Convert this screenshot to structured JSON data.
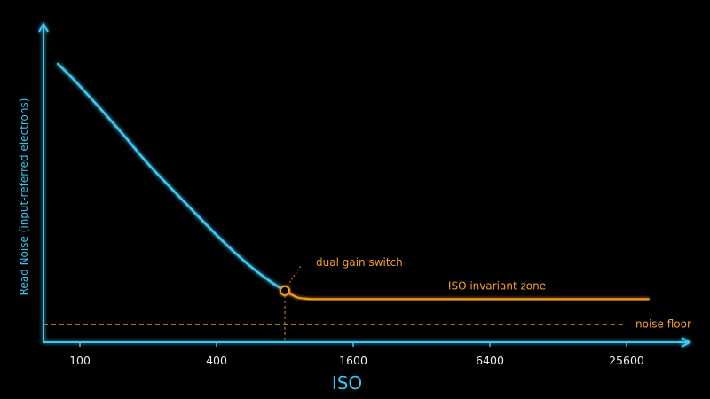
{
  "chart_data": {
    "type": "line",
    "xlabel": "ISO",
    "ylabel": "Read Noise (input-referred electrons)",
    "x_scale": "log2",
    "x_ticks": [
      100,
      400,
      1600,
      6400,
      25600
    ],
    "x_tick_labels": [
      "100",
      "400",
      "1600",
      "6400",
      "25600"
    ],
    "xlim": [
      65,
      60000
    ],
    "ylim": [
      0,
      10
    ],
    "grid": false,
    "series": [
      {
        "segment": "low-gain",
        "color": "#3cc8f2",
        "x": [
          80,
          100,
          150,
          200,
          300,
          400,
          500,
          600,
          700,
          800
        ],
        "y": [
          10.0,
          9.2,
          7.6,
          6.4,
          4.9,
          3.85,
          3.1,
          2.55,
          2.15,
          1.85
        ]
      },
      {
        "segment": "high-gain",
        "color": "#f29a1f",
        "x": [
          800,
          900,
          1000,
          1100,
          1600,
          3200,
          6400,
          12800,
          25600,
          32000
        ],
        "y": [
          1.85,
          1.62,
          1.56,
          1.55,
          1.55,
          1.55,
          1.55,
          1.55,
          1.55,
          1.55
        ]
      }
    ],
    "reference_lines": [
      {
        "type": "horizontal",
        "y": 0.65,
        "label": "noise floor",
        "style": "dashed"
      },
      {
        "type": "vertical",
        "x": 800,
        "style": "dashed"
      }
    ],
    "annotations": [
      {
        "text": "dual gain switch",
        "x": 800,
        "y": 1.85
      },
      {
        "text": "ISO invariant zone",
        "x": 6400,
        "y": 1.55
      }
    ],
    "colors": {
      "axis": "#3cc8f2",
      "low_gain": "#3cc8f2",
      "high_gain": "#f29a1f",
      "annotation": "#f2a126",
      "tick_text": "#e6eef2",
      "background": "#000000"
    }
  }
}
